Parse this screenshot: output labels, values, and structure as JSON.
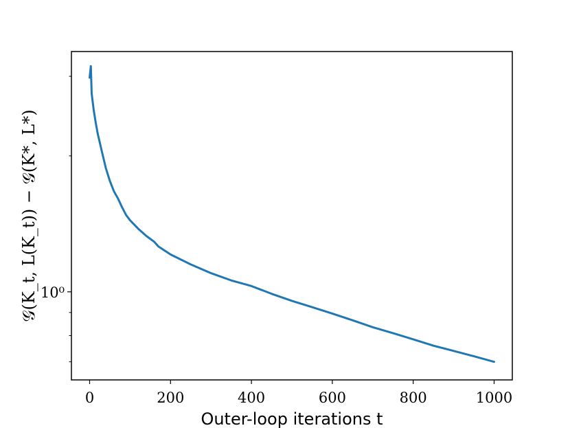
{
  "chart_data": {
    "type": "line",
    "title": "",
    "xlabel": "Outer-loop iterations t",
    "ylabel": "𝒢(K_t, L(K_t)) − 𝒢(K*, L*)",
    "xlim": [
      -45,
      1045
    ],
    "ylim_log10": [
      -0.195,
      0.532
    ],
    "yscale": "log",
    "grid": false,
    "legend": "none",
    "x_ticks": [
      0,
      200,
      400,
      600,
      800,
      1000
    ],
    "x_tick_labels": [
      "0",
      "200",
      "400",
      "600",
      "800",
      "1000"
    ],
    "y_major_ticks": [
      1
    ],
    "y_major_tick_labels": [
      "10⁰"
    ],
    "y_minor_ticks": [
      0.7,
      0.8,
      0.9,
      2,
      3
    ],
    "series": [
      {
        "color": "#1f77b4",
        "x": [
          0,
          3,
          5,
          10,
          15,
          20,
          30,
          40,
          50,
          60,
          70,
          80,
          90,
          100,
          120,
          140,
          160,
          170,
          200,
          250,
          300,
          350,
          400,
          450,
          500,
          550,
          600,
          650,
          700,
          750,
          800,
          850,
          900,
          950,
          1000
        ],
        "y": [
          2.98,
          3.16,
          2.75,
          2.53,
          2.37,
          2.24,
          2.05,
          1.88,
          1.76,
          1.67,
          1.61,
          1.54,
          1.48,
          1.44,
          1.38,
          1.33,
          1.29,
          1.26,
          1.21,
          1.15,
          1.1,
          1.06,
          1.03,
          0.99,
          0.955,
          0.925,
          0.895,
          0.865,
          0.835,
          0.81,
          0.785,
          0.76,
          0.74,
          0.72,
          0.7
        ]
      }
    ]
  }
}
